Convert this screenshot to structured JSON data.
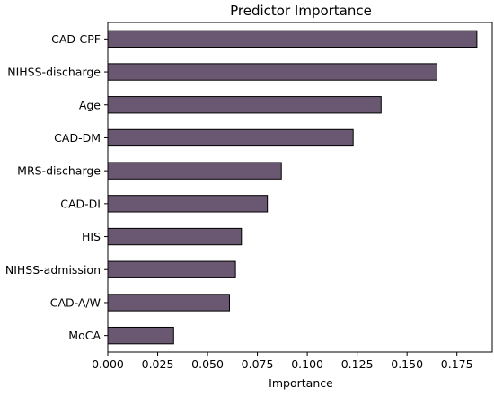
{
  "chart_data": {
    "type": "bar",
    "orientation": "horizontal",
    "title": "Predictor Importance",
    "xlabel": "Importance",
    "ylabel": "",
    "categories": [
      "CAD-CPF",
      "NIHSS-discharge",
      "Age",
      "CAD-DM",
      "MRS-discharge",
      "CAD-DI",
      "HIS",
      "NIHSS-admission",
      "CAD-A/W",
      "MoCA"
    ],
    "values": [
      0.185,
      0.165,
      0.137,
      0.123,
      0.087,
      0.08,
      0.067,
      0.064,
      0.061,
      0.033
    ],
    "xlim": [
      0.0,
      0.1927
    ],
    "xticks": [
      0.0,
      0.025,
      0.05,
      0.075,
      0.1,
      0.125,
      0.15,
      0.175
    ],
    "xtick_labels": [
      "0.000",
      "0.025",
      "0.050",
      "0.075",
      "0.100",
      "0.125",
      "0.150",
      "0.175"
    ],
    "bar_color": "#6a5872",
    "edge_color": "#000000",
    "grid": false,
    "legend": false
  }
}
